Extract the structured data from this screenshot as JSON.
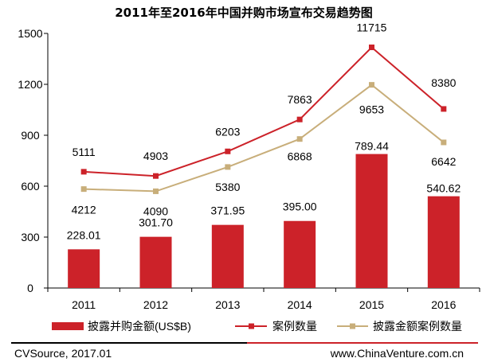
{
  "chart_data": {
    "type": "bar",
    "title": "2011年至2016年中国并购市场宣布交易趋势图",
    "categories": [
      "2011",
      "2012",
      "2013",
      "2014",
      "2015",
      "2016"
    ],
    "ylim": [
      0,
      1500
    ],
    "yticks": [
      "0",
      "300",
      "600",
      "900",
      "1200",
      "1500"
    ],
    "grid": false,
    "legend_position": "bottom",
    "series": [
      {
        "name": "披露并购金额(US$B)",
        "type": "bar",
        "color": "#cc2229",
        "values": [
          228.01,
          301.7,
          371.95,
          395.0,
          789.44,
          540.62
        ],
        "labels": [
          "228.01",
          "301.70",
          "371.95",
          "395.00",
          "789.44",
          "540.62"
        ]
      },
      {
        "name": "案例数量",
        "type": "line",
        "color": "#cc2229",
        "values": [
          5111,
          4903,
          6203,
          7863,
          11715,
          8380
        ],
        "plot_values": [
          685,
          660,
          805,
          993,
          1418,
          1055
        ],
        "labels": [
          "5111",
          "4903",
          "6203",
          "7863",
          "11715",
          "8380"
        ]
      },
      {
        "name": "披露金额案例数量",
        "type": "line",
        "color": "#c8ae7a",
        "values": [
          4212,
          4090,
          5380,
          6868,
          9653,
          6642
        ],
        "plot_values": [
          583,
          570,
          713,
          878,
          1197,
          858
        ],
        "labels": [
          "4212",
          "4090",
          "5380",
          "6868",
          "9653",
          "6642"
        ]
      }
    ]
  },
  "footer": {
    "source": "CVSource, 2017.01",
    "website": "www.ChinaVenture.com.cn"
  }
}
